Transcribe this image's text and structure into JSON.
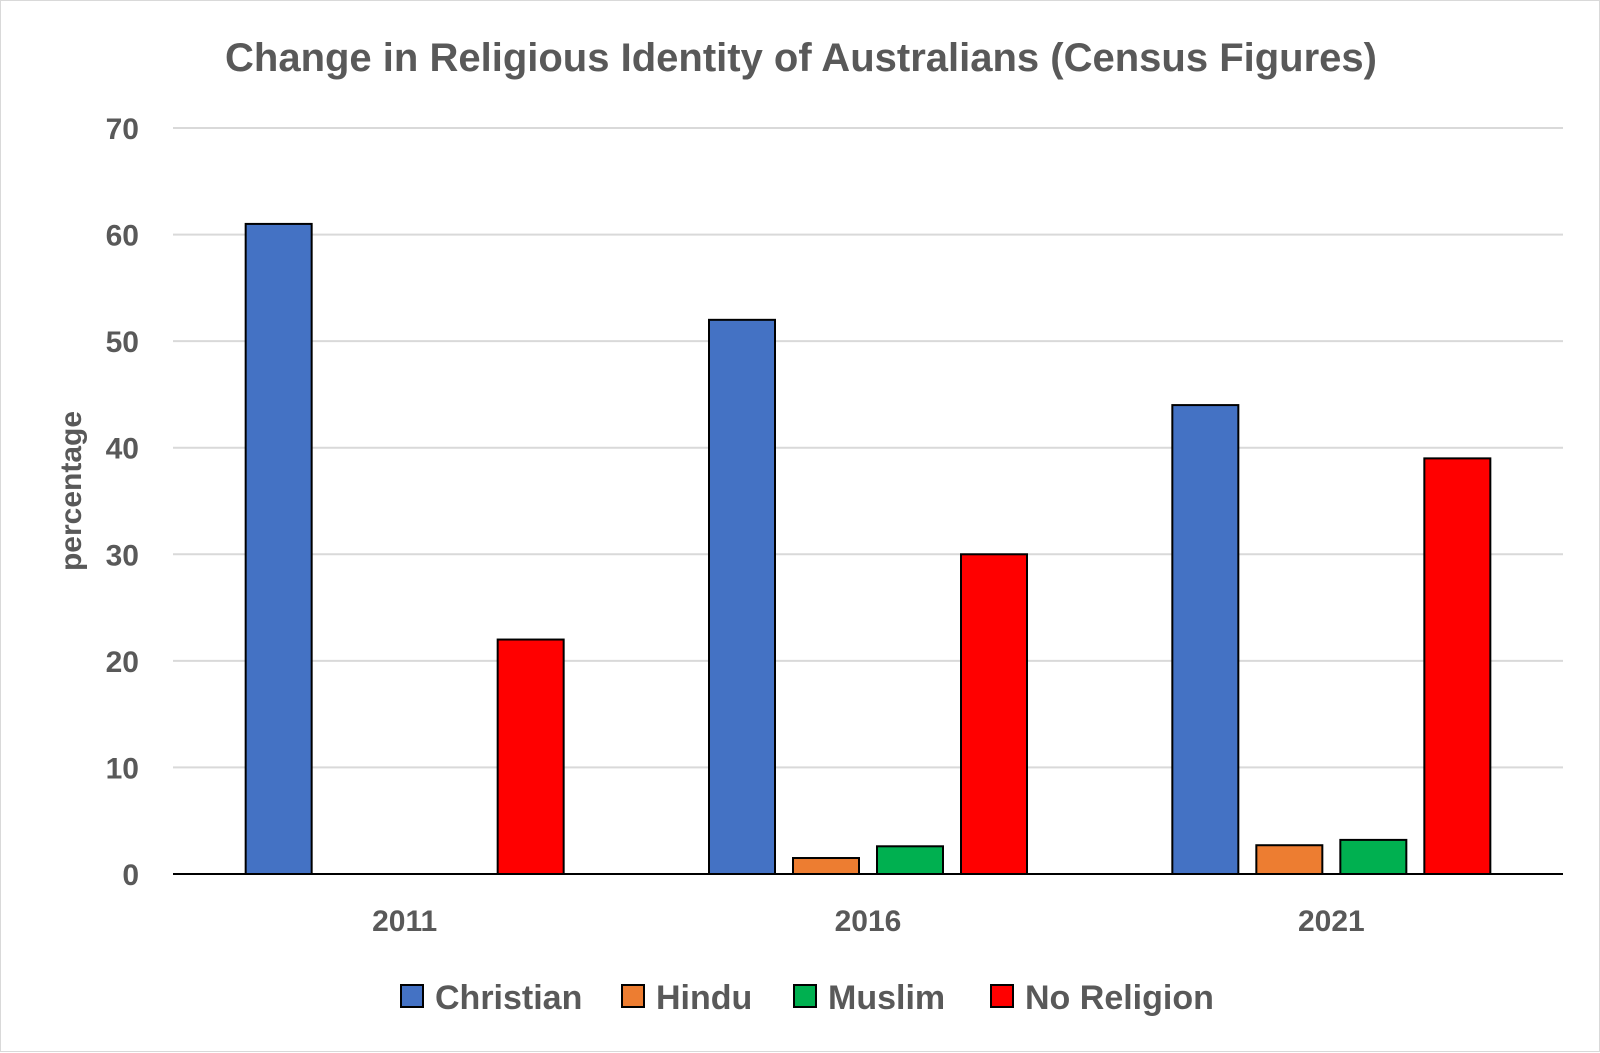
{
  "chart_data": {
    "type": "bar",
    "title": "Change in Religious Identity of Australians (Census Figures)",
    "xlabel": "",
    "ylabel": "percentage",
    "ylim": [
      0,
      70
    ],
    "yticks": [
      "0",
      "10",
      "20",
      "30",
      "40",
      "50",
      "60",
      "70"
    ],
    "categories": [
      "2011",
      "2016",
      "2021"
    ],
    "series": [
      {
        "name": "Christian",
        "color": "#4472C4",
        "values": [
          61,
          52,
          44
        ]
      },
      {
        "name": "Hindu",
        "color": "#ED7D31",
        "values": [
          0,
          1.5,
          2.7
        ]
      },
      {
        "name": "Muslim",
        "color": "#00B050",
        "values": [
          0,
          2.6,
          3.2
        ]
      },
      {
        "name": "No Religion",
        "color": "#FF0000",
        "values": [
          22,
          30,
          39
        ]
      }
    ],
    "grid": true,
    "legend_position": "bottom"
  }
}
